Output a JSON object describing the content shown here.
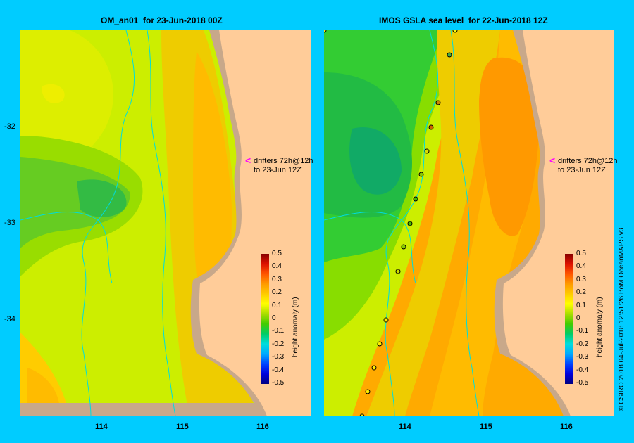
{
  "left_panel": {
    "title": "OM_an01  for 23-Jun-2018 00Z"
  },
  "right_panel": {
    "title": "IMOS GSLA sea level  for 22-Jun-2018 12Z"
  },
  "lat_labels": [
    "-32",
    "-33",
    "-34"
  ],
  "lon_labels": [
    "114",
    "115",
    "116"
  ],
  "drifter_note": {
    "line1": "drifters 72h@12h",
    "line2": "to 23-Jun 12Z"
  },
  "colorbar": {
    "label": "height anomaly (m)",
    "ticks": [
      "0.5",
      "0.4",
      "0.3",
      "0.2",
      "0.1",
      "0",
      "-0.1",
      "-0.2",
      "-0.3",
      "-0.4",
      "-0.5"
    ],
    "range": [
      -0.5,
      0.5
    ],
    "colors": [
      "#000080",
      "#0000dd",
      "#0044ff",
      "#00aaff",
      "#00dddd",
      "#00cc66",
      "#44cc00",
      "#aadd00",
      "#ffff00",
      "#ffcc00",
      "#ff9900",
      "#ff5500",
      "#dd1100",
      "#880000"
    ]
  },
  "credit": "© CSIRO 2018   04-Jul-2018 12:51:26 BoM OceanMAPS v3",
  "colors": {
    "background": "#00ccff",
    "land": "#ffcc99",
    "shelf": "#c8a88a",
    "drifter_arrow": "#ff00ff"
  }
}
